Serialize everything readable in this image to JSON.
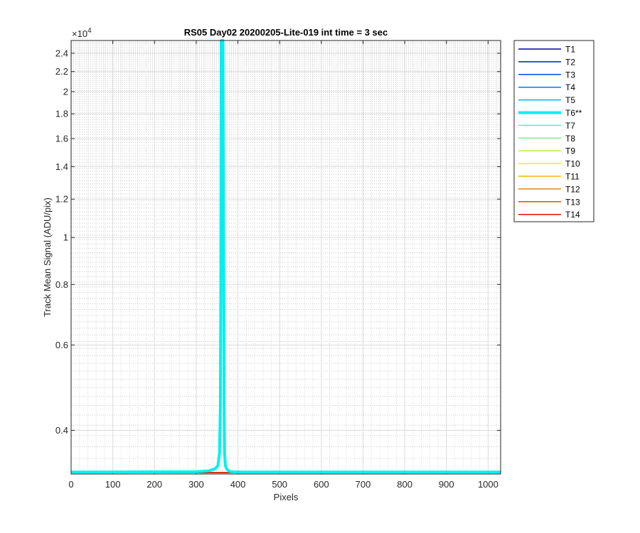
{
  "chart_data": {
    "type": "line",
    "title": "RS05 Day02 20200205-Lite-019 int time = 3 sec",
    "xlabel": "Pixels",
    "ylabel": "Track Mean Signal (ADU/pix)",
    "y_exponent_label": "×10",
    "y_exponent_power": "4",
    "y_scale": "log",
    "xlim": [
      0,
      1030
    ],
    "ylim": [
      3250,
      25500
    ],
    "grid": true,
    "minor_grid": true,
    "legend_position": "outside-right",
    "x_ticks": [
      0,
      100,
      200,
      300,
      400,
      500,
      600,
      700,
      800,
      900,
      1000
    ],
    "y_ticks": [
      {
        "value": 4000,
        "label": "0.4"
      },
      {
        "value": 6000,
        "label": "0.6"
      },
      {
        "value": 8000,
        "label": "0.8"
      },
      {
        "value": 10000,
        "label": "1"
      },
      {
        "value": 12000,
        "label": "1.2"
      },
      {
        "value": 14000,
        "label": "1.4"
      },
      {
        "value": 16000,
        "label": "1.6"
      },
      {
        "value": 18000,
        "label": "1.8"
      },
      {
        "value": 20000,
        "label": "2"
      },
      {
        "value": 22000,
        "label": "2.2"
      },
      {
        "value": 24000,
        "label": "2.4"
      }
    ],
    "series": [
      {
        "name": "T1",
        "color": "#0000a8",
        "width": 1.5,
        "x": [
          0,
          1030
        ],
        "y": [
          3270,
          3270
        ]
      },
      {
        "name": "T2",
        "color": "#0020c8",
        "width": 1.5,
        "x": [
          0,
          1030
        ],
        "y": [
          3270,
          3270
        ]
      },
      {
        "name": "T3",
        "color": "#0048e0",
        "width": 1.5,
        "x": [
          0,
          1030
        ],
        "y": [
          3270,
          3270
        ]
      },
      {
        "name": "T4",
        "color": "#0078f0",
        "width": 1.5,
        "x": [
          0,
          1030
        ],
        "y": [
          3270,
          3270
        ]
      },
      {
        "name": "T5",
        "color": "#00b0f8",
        "width": 1.5,
        "x": [
          0,
          1030
        ],
        "y": [
          3270,
          3270
        ]
      },
      {
        "name": "T6**",
        "color": "#00f0f0",
        "width": 4,
        "x": [
          0,
          300,
          330,
          345,
          352,
          356,
          358,
          359,
          360,
          362,
          364,
          366,
          367,
          368,
          370,
          374,
          380,
          395,
          1030
        ],
        "y": [
          3280,
          3285,
          3300,
          3330,
          3380,
          3600,
          4500,
          8000,
          25500,
          25500,
          25500,
          8000,
          4500,
          3600,
          3380,
          3320,
          3290,
          3280,
          3280
        ]
      },
      {
        "name": "T7",
        "color": "#40f8c8",
        "width": 1.5,
        "x": [
          0,
          1030
        ],
        "y": [
          3270,
          3270
        ]
      },
      {
        "name": "T8",
        "color": "#80f090",
        "width": 1.5,
        "x": [
          0,
          1030
        ],
        "y": [
          3270,
          3270
        ]
      },
      {
        "name": "T9",
        "color": "#c0f040",
        "width": 1.5,
        "x": [
          0,
          1030
        ],
        "y": [
          3270,
          3270
        ]
      },
      {
        "name": "T10",
        "color": "#f0f000",
        "width": 1.5,
        "x": [
          0,
          1030
        ],
        "y": [
          3270,
          3270
        ]
      },
      {
        "name": "T11",
        "color": "#f0b800",
        "width": 1.5,
        "x": [
          0,
          1030
        ],
        "y": [
          3270,
          3270
        ]
      },
      {
        "name": "T12",
        "color": "#f08000",
        "width": 1.5,
        "x": [
          0,
          1030
        ],
        "y": [
          3270,
          3270
        ]
      },
      {
        "name": "T13",
        "color": "#f04800",
        "width": 1.5,
        "x": [
          0,
          1030
        ],
        "y": [
          3270,
          3270
        ]
      },
      {
        "name": "T14",
        "color": "#e01000",
        "width": 1.5,
        "x": [
          0,
          1030
        ],
        "y": [
          3270,
          3270
        ]
      }
    ]
  }
}
